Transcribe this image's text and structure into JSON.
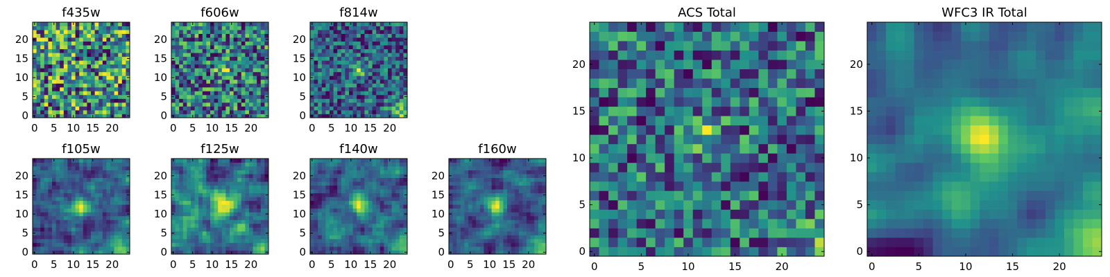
{
  "figure": {
    "colormap": "viridis",
    "colormap_stops": [
      "#440154",
      "#3b528b",
      "#21918c",
      "#5ec962",
      "#fde725"
    ]
  },
  "chart_data": [
    {
      "type": "heatmap",
      "title": "f435w",
      "xlim": [
        -0.5,
        24.5
      ],
      "ylim": [
        -0.5,
        24.5
      ],
      "xticks": [
        0,
        5,
        10,
        15,
        20
      ],
      "yticks": [
        0,
        5,
        10,
        15,
        20
      ],
      "grid": false,
      "field": {
        "seed": 11,
        "mean": 0.66,
        "noise": 0.28,
        "blob": null,
        "corner": 0.0,
        "smooth": 0
      }
    },
    {
      "type": "heatmap",
      "title": "f606w",
      "xlim": [
        -0.5,
        24.5
      ],
      "ylim": [
        -0.5,
        24.5
      ],
      "xticks": [
        0,
        5,
        10,
        15,
        20
      ],
      "yticks": [
        0,
        5,
        10,
        15,
        20
      ],
      "grid": false,
      "field": {
        "seed": 23,
        "mean": 0.62,
        "noise": 0.3,
        "blob": {
          "x": 13,
          "y": 12,
          "amp": 0.25,
          "sigma": 1.5
        },
        "corner": 0.0,
        "smooth": 0
      }
    },
    {
      "type": "heatmap",
      "title": "f814w",
      "xlim": [
        -0.5,
        24.5
      ],
      "ylim": [
        -0.5,
        24.5
      ],
      "xticks": [
        0,
        5,
        10,
        15,
        20
      ],
      "yticks": [
        0,
        5,
        10,
        15,
        20
      ],
      "grid": false,
      "field": {
        "seed": 37,
        "mean": 0.6,
        "noise": 0.27,
        "blob": {
          "x": 12,
          "y": 12,
          "amp": 0.35,
          "sigma": 1.4
        },
        "corner": 0.35,
        "smooth": 0
      }
    },
    {
      "type": "heatmap",
      "title": "f105w",
      "xlim": [
        -0.5,
        24.5
      ],
      "ylim": [
        -0.5,
        24.5
      ],
      "xticks": [
        0,
        5,
        10,
        15,
        20
      ],
      "yticks": [
        0,
        5,
        10,
        15,
        20
      ],
      "grid": false,
      "field": {
        "seed": 41,
        "mean": 0.52,
        "noise": 0.24,
        "blob": {
          "x": 12,
          "y": 12,
          "amp": 0.45,
          "sigma": 2.0
        },
        "corner": 0.35,
        "smooth": 1
      }
    },
    {
      "type": "heatmap",
      "title": "f125w",
      "xlim": [
        -0.5,
        24.5
      ],
      "ylim": [
        -0.5,
        24.5
      ],
      "xticks": [
        0,
        5,
        10,
        15,
        20
      ],
      "yticks": [
        0,
        5,
        10,
        15,
        20
      ],
      "grid": false,
      "field": {
        "seed": 53,
        "mean": 0.52,
        "noise": 0.24,
        "blob": {
          "x": 13,
          "y": 12,
          "amp": 0.45,
          "sigma": 2.0
        },
        "corner": 0.35,
        "smooth": 1
      }
    },
    {
      "type": "heatmap",
      "title": "f140w",
      "xlim": [
        -0.5,
        24.5
      ],
      "ylim": [
        -0.5,
        24.5
      ],
      "xticks": [
        0,
        5,
        10,
        15,
        20
      ],
      "yticks": [
        0,
        5,
        10,
        15,
        20
      ],
      "grid": false,
      "field": {
        "seed": 67,
        "mean": 0.5,
        "noise": 0.25,
        "blob": {
          "x": 12,
          "y": 13,
          "amp": 0.45,
          "sigma": 1.8
        },
        "corner": 0.4,
        "smooth": 1
      }
    },
    {
      "type": "heatmap",
      "title": "f160w",
      "xlim": [
        -0.5,
        24.5
      ],
      "ylim": [
        -0.5,
        24.5
      ],
      "xticks": [
        0,
        5,
        10,
        15,
        20
      ],
      "yticks": [
        0,
        5,
        10,
        15,
        20
      ],
      "grid": false,
      "field": {
        "seed": 71,
        "mean": 0.46,
        "noise": 0.24,
        "blob": {
          "x": 12,
          "y": 12,
          "amp": 0.5,
          "sigma": 1.8
        },
        "corner": 0.45,
        "smooth": 1
      }
    },
    {
      "type": "heatmap",
      "title": "ACS Total",
      "xlim": [
        -0.5,
        24.5
      ],
      "ylim": [
        -0.5,
        24.5
      ],
      "xticks": [
        0,
        5,
        10,
        15,
        20
      ],
      "yticks": [
        0,
        5,
        10,
        15,
        20
      ],
      "grid": false,
      "field": {
        "seed": 83,
        "mean": 0.68,
        "noise": 0.22,
        "blob": {
          "x": 12,
          "y": 12,
          "amp": 0.22,
          "sigma": 1.6
        },
        "corner": 0.15,
        "smooth": 0
      }
    },
    {
      "type": "heatmap",
      "title": "WFC3 IR Total",
      "xlim": [
        -0.5,
        24.5
      ],
      "ylim": [
        -0.5,
        24.5
      ],
      "xticks": [
        0,
        5,
        10,
        15,
        20
      ],
      "yticks": [
        0,
        5,
        10,
        15,
        20
      ],
      "grid": false,
      "field": {
        "seed": 97,
        "mean": 0.42,
        "noise": 0.16,
        "blob": {
          "x": 12,
          "y": 12,
          "amp": 0.55,
          "sigma": 2.0
        },
        "corner": 0.5,
        "smooth": 2
      }
    }
  ]
}
